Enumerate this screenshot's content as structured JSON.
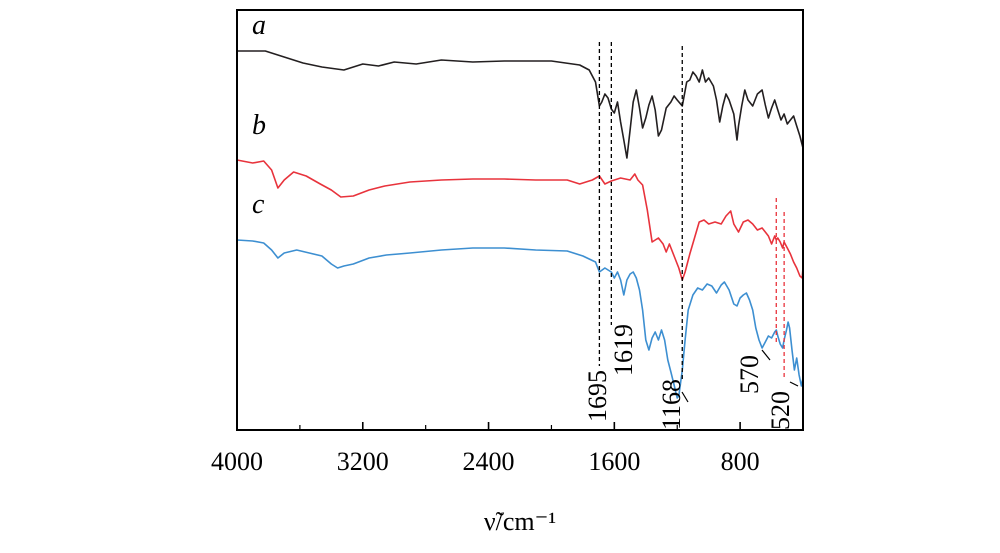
{
  "chart_data": {
    "type": "line",
    "xlabel": "ν̃/cm⁻¹",
    "x_reversed": true,
    "xlim": [
      4000,
      400
    ],
    "xticks": [
      4000,
      3200,
      2400,
      1600,
      800
    ],
    "xtick_labels": [
      "4000",
      "3200",
      "2400",
      "1600",
      "800"
    ],
    "y_axis": "arbitrary transmittance, curves vertically offset, no y tick labels",
    "grid": false,
    "series": [
      {
        "name": "a",
        "color": "#231f20",
        "points": [
          [
            4000,
            41
          ],
          [
            3820,
            41
          ],
          [
            3720,
            46
          ],
          [
            3580,
            53
          ],
          [
            3460,
            57
          ],
          [
            3320,
            60
          ],
          [
            3200,
            54
          ],
          [
            3100,
            56
          ],
          [
            3000,
            52
          ],
          [
            2860,
            54
          ],
          [
            2700,
            50
          ],
          [
            2500,
            52
          ],
          [
            2300,
            51
          ],
          [
            2000,
            51
          ],
          [
            1820,
            55
          ],
          [
            1760,
            60
          ],
          [
            1720,
            72
          ],
          [
            1695,
            96
          ],
          [
            1680,
            92
          ],
          [
            1660,
            84
          ],
          [
            1640,
            88
          ],
          [
            1619,
            99
          ],
          [
            1600,
            103
          ],
          [
            1580,
            92
          ],
          [
            1560,
            112
          ],
          [
            1540,
            130
          ],
          [
            1520,
            148
          ],
          [
            1500,
            120
          ],
          [
            1480,
            92
          ],
          [
            1460,
            80
          ],
          [
            1440,
            98
          ],
          [
            1420,
            118
          ],
          [
            1400,
            108
          ],
          [
            1380,
            95
          ],
          [
            1360,
            86
          ],
          [
            1340,
            100
          ],
          [
            1320,
            126
          ],
          [
            1300,
            120
          ],
          [
            1270,
            98
          ],
          [
            1240,
            92
          ],
          [
            1220,
            86
          ],
          [
            1200,
            90
          ],
          [
            1168,
            96
          ],
          [
            1140,
            72
          ],
          [
            1120,
            70
          ],
          [
            1100,
            62
          ],
          [
            1080,
            66
          ],
          [
            1060,
            72
          ],
          [
            1040,
            60
          ],
          [
            1020,
            72
          ],
          [
            1000,
            68
          ],
          [
            970,
            76
          ],
          [
            950,
            90
          ],
          [
            930,
            112
          ],
          [
            910,
            96
          ],
          [
            890,
            84
          ],
          [
            870,
            90
          ],
          [
            840,
            104
          ],
          [
            820,
            130
          ],
          [
            810,
            116
          ],
          [
            790,
            96
          ],
          [
            770,
            80
          ],
          [
            750,
            90
          ],
          [
            720,
            96
          ],
          [
            690,
            84
          ],
          [
            660,
            80
          ],
          [
            640,
            95
          ],
          [
            620,
            108
          ],
          [
            600,
            98
          ],
          [
            580,
            90
          ],
          [
            560,
            100
          ],
          [
            540,
            110
          ],
          [
            520,
            104
          ],
          [
            500,
            114
          ],
          [
            480,
            110
          ],
          [
            460,
            106
          ],
          [
            440,
            116
          ],
          [
            420,
            126
          ],
          [
            400,
            138
          ]
        ]
      },
      {
        "name": "b",
        "color": "#e8333c",
        "points": [
          [
            4000,
            150
          ],
          [
            3900,
            153
          ],
          [
            3830,
            151
          ],
          [
            3780,
            160
          ],
          [
            3740,
            178
          ],
          [
            3700,
            170
          ],
          [
            3640,
            162
          ],
          [
            3560,
            166
          ],
          [
            3470,
            174
          ],
          [
            3400,
            180
          ],
          [
            3340,
            187
          ],
          [
            3260,
            186
          ],
          [
            3160,
            180
          ],
          [
            3060,
            176
          ],
          [
            2900,
            172
          ],
          [
            2700,
            170
          ],
          [
            2500,
            169
          ],
          [
            2300,
            169
          ],
          [
            2100,
            170
          ],
          [
            1900,
            170
          ],
          [
            1820,
            174
          ],
          [
            1740,
            170
          ],
          [
            1695,
            166
          ],
          [
            1660,
            174
          ],
          [
            1619,
            171
          ],
          [
            1560,
            168
          ],
          [
            1500,
            170
          ],
          [
            1470,
            164
          ],
          [
            1450,
            170
          ],
          [
            1420,
            175
          ],
          [
            1390,
            200
          ],
          [
            1360,
            232
          ],
          [
            1320,
            228
          ],
          [
            1290,
            234
          ],
          [
            1270,
            242
          ],
          [
            1250,
            234
          ],
          [
            1220,
            246
          ],
          [
            1190,
            258
          ],
          [
            1168,
            270
          ],
          [
            1150,
            262
          ],
          [
            1120,
            244
          ],
          [
            1090,
            228
          ],
          [
            1060,
            212
          ],
          [
            1030,
            210
          ],
          [
            1000,
            214
          ],
          [
            960,
            212
          ],
          [
            920,
            214
          ],
          [
            890,
            206
          ],
          [
            860,
            201
          ],
          [
            840,
            214
          ],
          [
            810,
            222
          ],
          [
            780,
            212
          ],
          [
            750,
            210
          ],
          [
            720,
            214
          ],
          [
            690,
            220
          ],
          [
            660,
            218
          ],
          [
            640,
            222
          ],
          [
            620,
            226
          ],
          [
            600,
            234
          ],
          [
            580,
            226
          ],
          [
            570,
            230
          ],
          [
            560,
            228
          ],
          [
            545,
            232
          ],
          [
            530,
            238
          ],
          [
            520,
            232
          ],
          [
            500,
            238
          ],
          [
            480,
            244
          ],
          [
            460,
            252
          ],
          [
            440,
            258
          ],
          [
            420,
            266
          ],
          [
            405,
            268
          ],
          [
            400,
            258
          ]
        ]
      },
      {
        "name": "c",
        "color": "#3d8fd1",
        "points": [
          [
            4000,
            230
          ],
          [
            3900,
            231
          ],
          [
            3830,
            233
          ],
          [
            3780,
            240
          ],
          [
            3740,
            248
          ],
          [
            3700,
            243
          ],
          [
            3620,
            240
          ],
          [
            3540,
            243
          ],
          [
            3460,
            246
          ],
          [
            3400,
            254
          ],
          [
            3360,
            258
          ],
          [
            3320,
            256
          ],
          [
            3260,
            254
          ],
          [
            3160,
            248
          ],
          [
            3050,
            245
          ],
          [
            2900,
            243
          ],
          [
            2700,
            240
          ],
          [
            2500,
            238
          ],
          [
            2300,
            238
          ],
          [
            2100,
            240
          ],
          [
            1900,
            241
          ],
          [
            1800,
            246
          ],
          [
            1720,
            252
          ],
          [
            1695,
            262
          ],
          [
            1660,
            258
          ],
          [
            1619,
            262
          ],
          [
            1600,
            268
          ],
          [
            1580,
            262
          ],
          [
            1560,
            270
          ],
          [
            1540,
            285
          ],
          [
            1520,
            270
          ],
          [
            1500,
            264
          ],
          [
            1480,
            262
          ],
          [
            1460,
            268
          ],
          [
            1440,
            280
          ],
          [
            1420,
            300
          ],
          [
            1400,
            330
          ],
          [
            1380,
            340
          ],
          [
            1360,
            328
          ],
          [
            1340,
            322
          ],
          [
            1320,
            330
          ],
          [
            1300,
            320
          ],
          [
            1280,
            330
          ],
          [
            1260,
            350
          ],
          [
            1240,
            362
          ],
          [
            1220,
            375
          ],
          [
            1200,
            388
          ],
          [
            1190,
            386
          ],
          [
            1168,
            360
          ],
          [
            1150,
            330
          ],
          [
            1130,
            300
          ],
          [
            1100,
            285
          ],
          [
            1070,
            278
          ],
          [
            1040,
            280
          ],
          [
            1010,
            274
          ],
          [
            980,
            276
          ],
          [
            950,
            283
          ],
          [
            920,
            275
          ],
          [
            900,
            272
          ],
          [
            870,
            280
          ],
          [
            840,
            294
          ],
          [
            820,
            296
          ],
          [
            800,
            288
          ],
          [
            780,
            285
          ],
          [
            760,
            283
          ],
          [
            740,
            290
          ],
          [
            720,
            300
          ],
          [
            700,
            318
          ],
          [
            680,
            330
          ],
          [
            660,
            338
          ],
          [
            640,
            332
          ],
          [
            620,
            326
          ],
          [
            600,
            328
          ],
          [
            580,
            322
          ],
          [
            570,
            320
          ],
          [
            560,
            326
          ],
          [
            545,
            334
          ],
          [
            530,
            338
          ],
          [
            520,
            330
          ],
          [
            505,
            320
          ],
          [
            495,
            312
          ],
          [
            485,
            318
          ],
          [
            470,
            340
          ],
          [
            455,
            360
          ],
          [
            440,
            348
          ],
          [
            425,
            365
          ],
          [
            410,
            376
          ],
          [
            400,
            368
          ]
        ]
      }
    ],
    "annotations": [
      {
        "label": "1695",
        "x": 1695,
        "color": "#000000"
      },
      {
        "label": "1619",
        "x": 1619,
        "color": "#000000"
      },
      {
        "label": "1168",
        "x": 1168,
        "color": "#000000"
      },
      {
        "label": "570",
        "x": 570,
        "color": "#e8333c"
      },
      {
        "label": "520",
        "x": 520,
        "color": "#e8333c"
      }
    ]
  }
}
